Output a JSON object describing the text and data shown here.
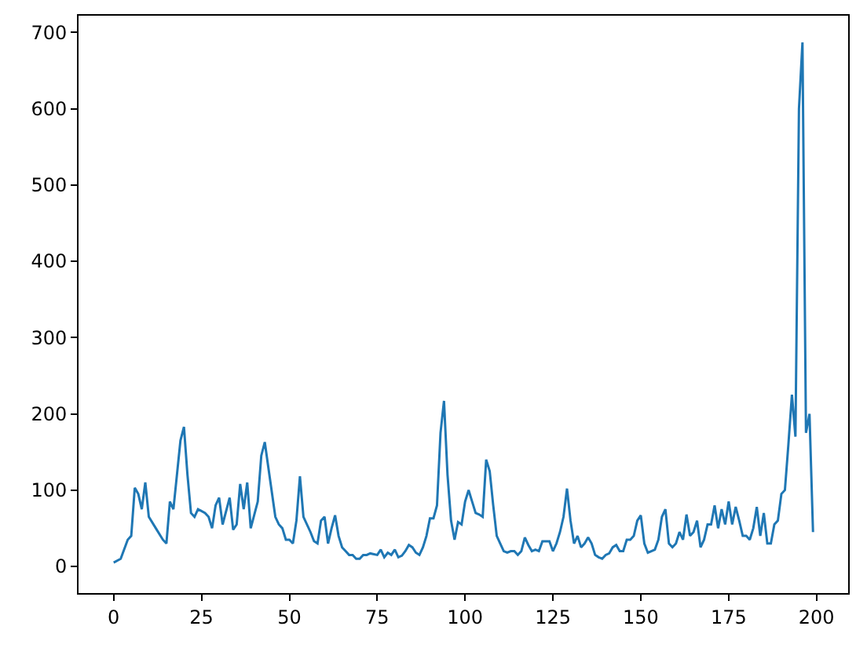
{
  "chart_data": {
    "type": "line",
    "x": [
      0,
      2,
      4,
      5,
      6,
      7,
      8,
      9,
      10,
      12,
      14,
      15,
      16,
      17,
      19,
      20,
      21,
      22,
      23,
      24,
      26,
      27,
      28,
      29,
      30,
      31,
      33,
      34,
      35,
      36,
      37,
      38,
      39,
      41,
      42,
      43,
      44,
      46,
      47,
      48,
      49,
      50,
      51,
      52,
      53,
      54,
      56,
      57,
      58,
      59,
      60,
      61,
      62,
      63,
      64,
      65,
      66,
      67,
      68,
      69,
      70,
      71,
      72,
      73,
      75,
      76,
      77,
      78,
      79,
      80,
      81,
      82,
      83,
      84,
      85,
      86,
      87,
      88,
      89,
      90,
      91,
      92,
      93,
      94,
      95,
      96,
      97,
      98,
      99,
      100,
      101,
      102,
      103,
      104,
      105,
      106,
      107,
      108,
      109,
      110,
      111,
      112,
      113,
      114,
      115,
      116,
      117,
      118,
      119,
      120,
      121,
      122,
      123,
      124,
      125,
      126,
      127,
      128,
      129,
      130,
      131,
      132,
      133,
      134,
      135,
      136,
      137,
      138,
      139,
      140,
      141,
      142,
      143,
      144,
      145,
      146,
      147,
      148,
      149,
      150,
      151,
      152,
      153,
      154,
      155,
      156,
      157,
      158,
      159,
      160,
      161,
      162,
      163,
      164,
      165,
      166,
      167,
      168,
      169,
      170,
      171,
      172,
      173,
      174,
      175,
      176,
      177,
      178,
      179,
      180,
      181,
      182,
      183,
      184,
      185,
      186,
      187,
      188,
      189,
      190,
      191,
      192,
      193,
      194,
      195,
      196,
      197,
      198,
      199
    ],
    "series": [
      {
        "color": "#1f77b4",
        "values": [
          5,
          10,
          35,
          40,
          103,
          95,
          75,
          110,
          65,
          50,
          35,
          30,
          85,
          75,
          165,
          183,
          120,
          70,
          65,
          75,
          70,
          65,
          50,
          80,
          90,
          55,
          90,
          48,
          55,
          108,
          75,
          110,
          50,
          85,
          145,
          163,
          130,
          65,
          55,
          50,
          35,
          35,
          30,
          60,
          118,
          65,
          45,
          33,
          30,
          60,
          65,
          30,
          50,
          67,
          40,
          25,
          20,
          15,
          15,
          10,
          10,
          15,
          15,
          17,
          15,
          22,
          12,
          18,
          15,
          22,
          12,
          14,
          20,
          28,
          25,
          18,
          15,
          25,
          40,
          63,
          63,
          80,
          175,
          217,
          120,
          60,
          35,
          58,
          55,
          85,
          100,
          85,
          70,
          68,
          65,
          140,
          125,
          80,
          40,
          30,
          20,
          18,
          20,
          20,
          15,
          20,
          38,
          28,
          20,
          22,
          20,
          33,
          33,
          33,
          20,
          30,
          45,
          65,
          102,
          60,
          30,
          40,
          25,
          30,
          38,
          30,
          15,
          12,
          10,
          15,
          17,
          25,
          28,
          20,
          20,
          35,
          35,
          40,
          60,
          67,
          30,
          18,
          20,
          22,
          35,
          65,
          75,
          30,
          25,
          30,
          45,
          35,
          68,
          40,
          45,
          60,
          25,
          35,
          55,
          55,
          80,
          50,
          75,
          55,
          85,
          55,
          78,
          60,
          40,
          40,
          35,
          50,
          78,
          40,
          70,
          30,
          30,
          55,
          60,
          95,
          100,
          160,
          225,
          170,
          600,
          687,
          175,
          200,
          45
        ]
      }
    ],
    "xlim": [
      -10,
      209
    ],
    "ylim": [
      -35,
      722
    ],
    "xticks": [
      0,
      25,
      50,
      75,
      100,
      125,
      150,
      175,
      200
    ],
    "yticks": [
      0,
      100,
      200,
      300,
      400,
      500,
      600,
      700
    ],
    "grid": false,
    "marker": "none",
    "line_style": "solid"
  }
}
